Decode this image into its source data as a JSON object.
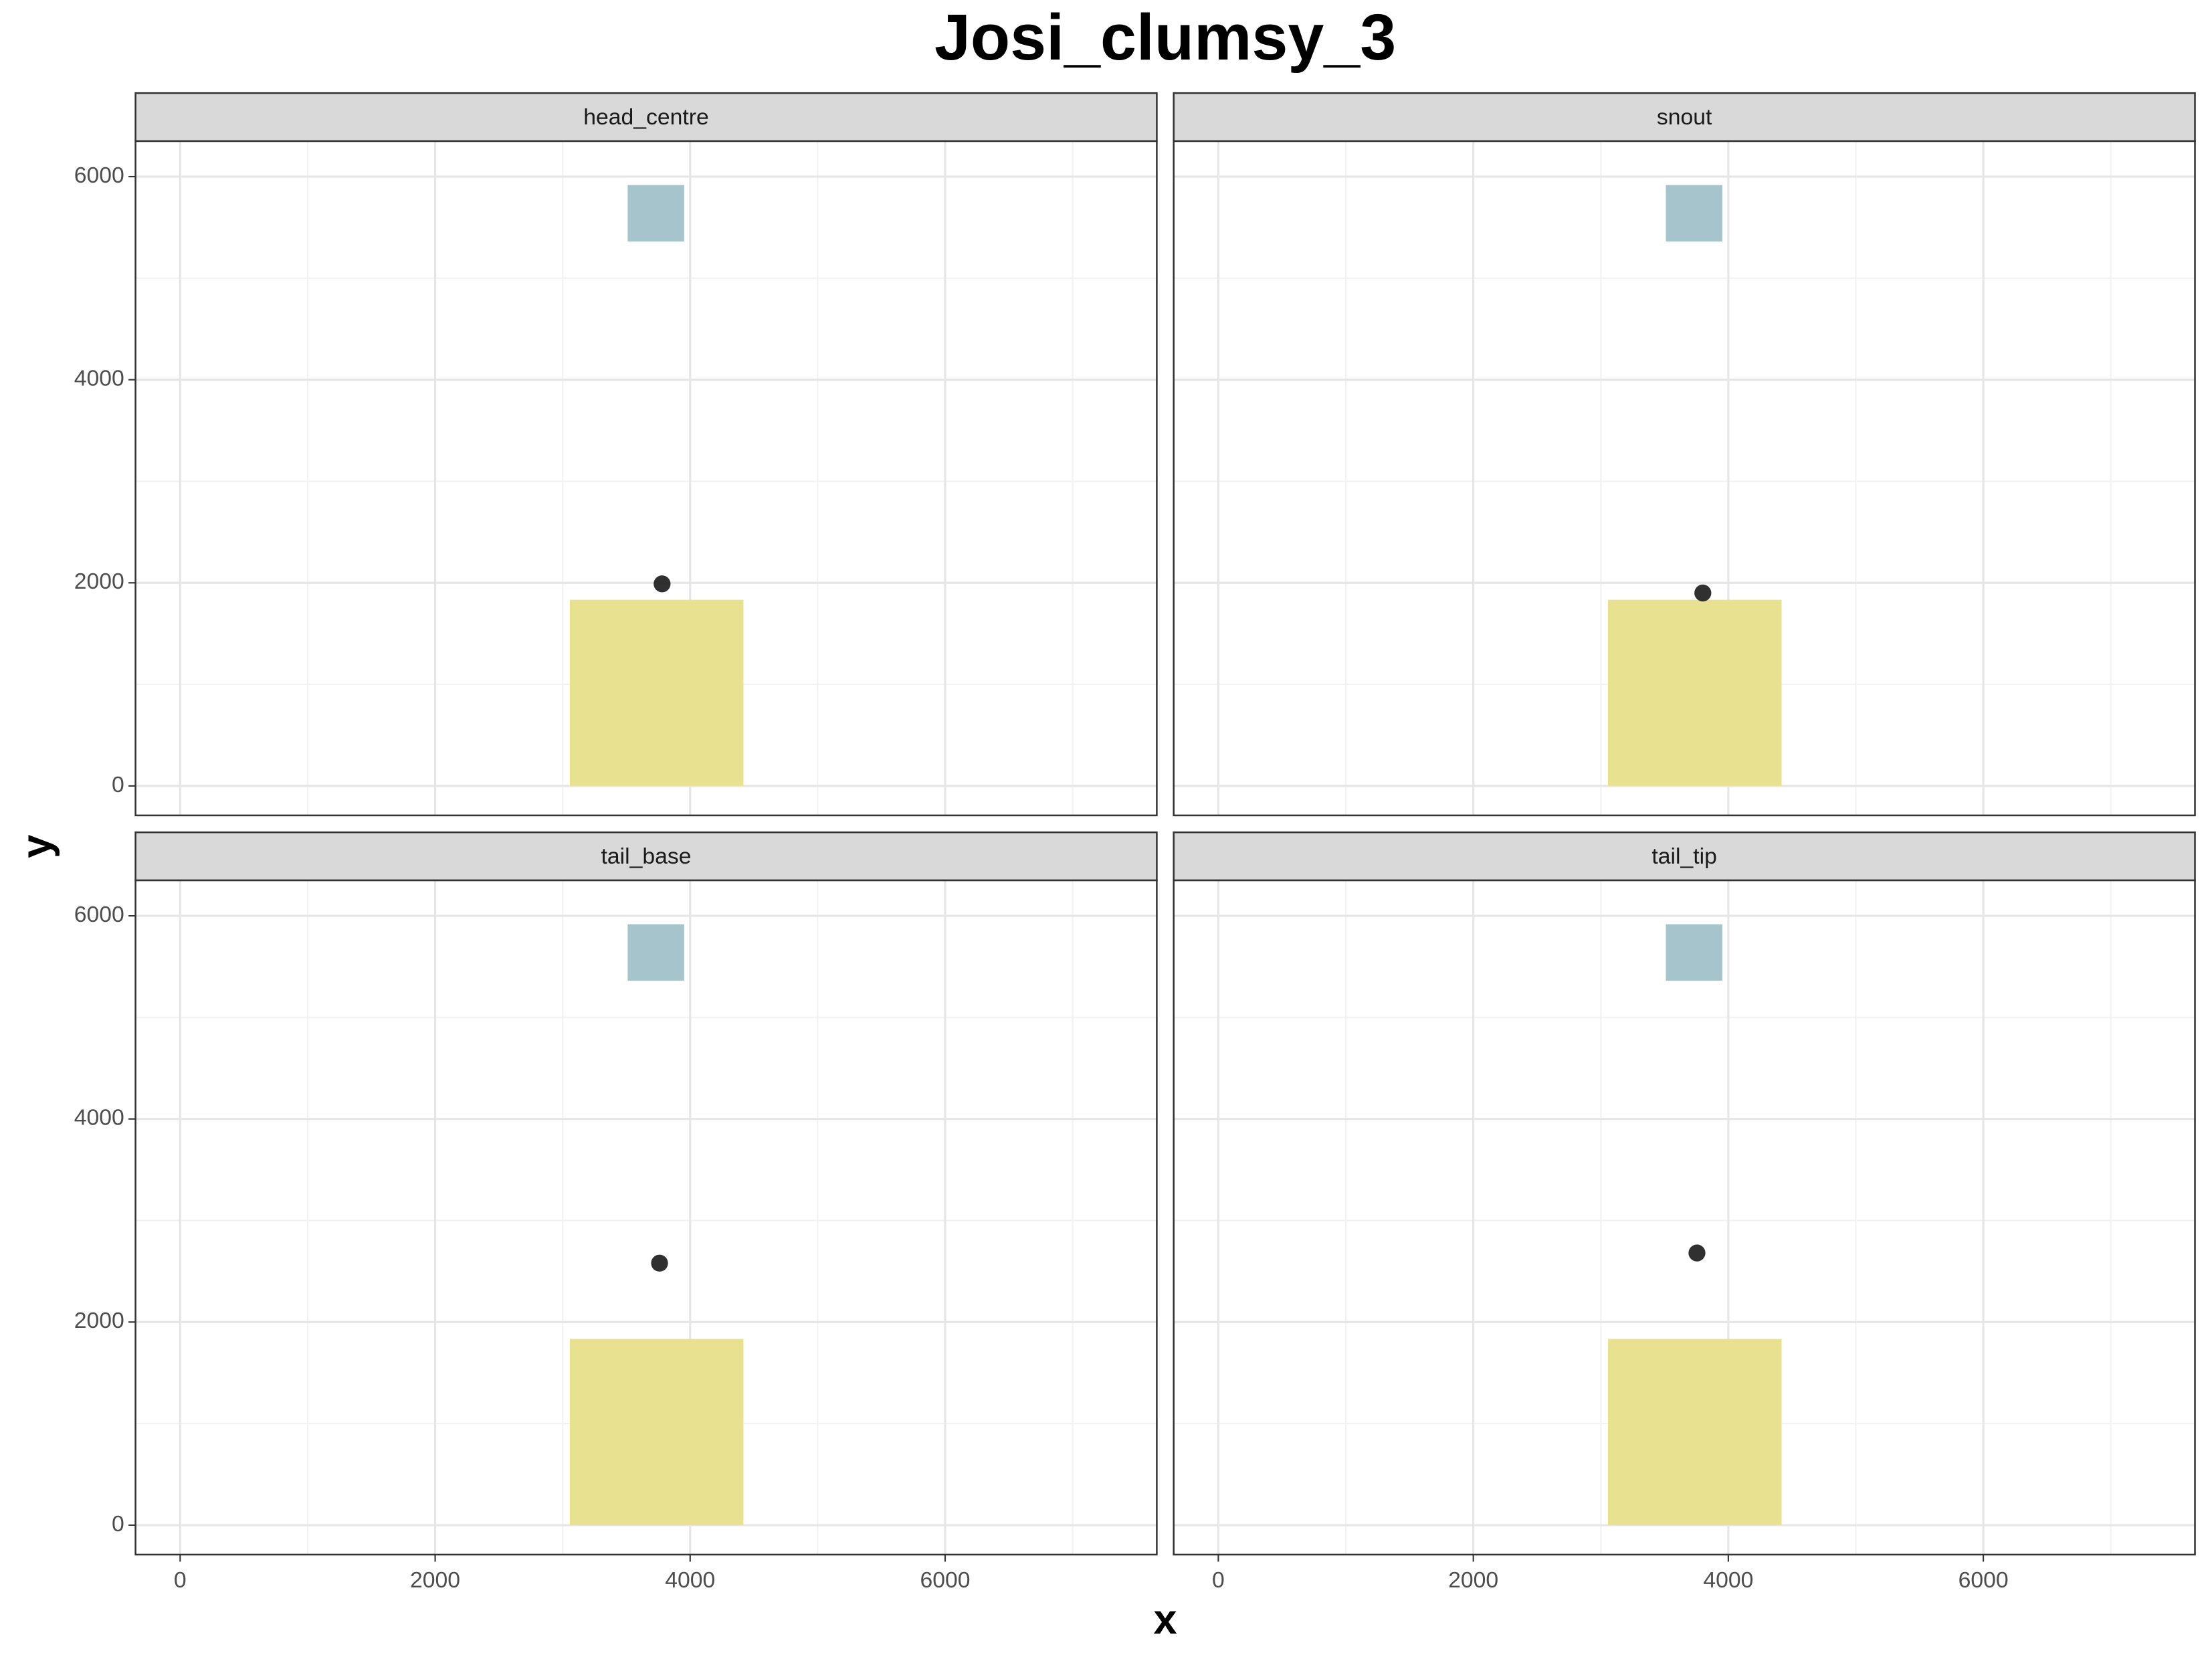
{
  "chart_data": {
    "type": "scatter",
    "title": "Josi_clumsy_3",
    "xlabel": "x",
    "ylabel": "y",
    "xlim": [
      -350,
      7660
    ],
    "ylim": [
      -290,
      6350
    ],
    "xticks": [
      0,
      2000,
      4000,
      6000
    ],
    "yticks": [
      0,
      2000,
      4000,
      6000
    ],
    "grid": true,
    "point_color": "#1a1a1a",
    "rects": [
      {
        "x": [
          3056,
          4418
        ],
        "y": [
          0,
          1833
        ],
        "color": "#e8e290"
      },
      {
        "x": [
          3510,
          3953
        ],
        "y": [
          5361,
          5917
        ],
        "color": "#a5c4cb"
      }
    ],
    "facets": [
      {
        "name": "head_centre",
        "x": [
          3780
        ],
        "y": [
          1990
        ]
      },
      {
        "name": "snout",
        "x": [
          3800
        ],
        "y": [
          1900
        ]
      },
      {
        "name": "tail_base",
        "x": [
          3760
        ],
        "y": [
          2580
        ]
      },
      {
        "name": "tail_tip",
        "x": [
          3754
        ],
        "y": [
          2680
        ]
      }
    ]
  }
}
